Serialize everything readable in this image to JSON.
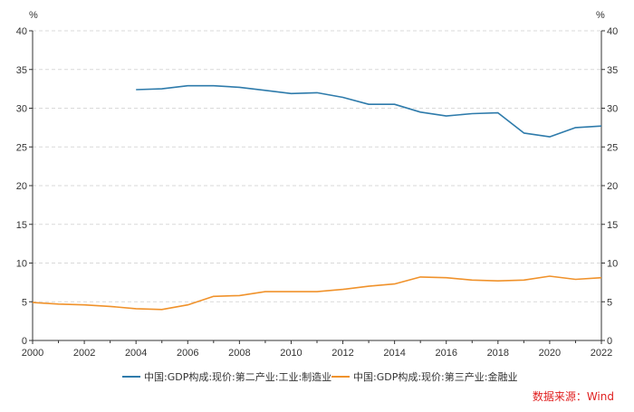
{
  "chart_data": {
    "type": "line",
    "x": [
      2000,
      2001,
      2002,
      2003,
      2004,
      2005,
      2006,
      2007,
      2008,
      2009,
      2010,
      2011,
      2012,
      2013,
      2014,
      2015,
      2016,
      2017,
      2018,
      2019,
      2020,
      2021,
      2022
    ],
    "x_tick_labels": [
      "2000",
      "2002",
      "2004",
      "2006",
      "2008",
      "2010",
      "2012",
      "2014",
      "2016",
      "2018",
      "2020",
      "2022"
    ],
    "xlim": [
      2000,
      2022
    ],
    "ylim": [
      0,
      40
    ],
    "y_tick_labels": [
      "0",
      "5",
      "10",
      "15",
      "20",
      "25",
      "30",
      "35",
      "40"
    ],
    "y_unit_left": "%",
    "y_unit_right": "%",
    "grid": "horizontal-dashed",
    "legend_position": "bottom",
    "series": [
      {
        "name": "中国:GDP构成:现价:第二产业:工业:制造业",
        "color": "#2e7bab",
        "values": [
          null,
          null,
          null,
          null,
          32.4,
          32.5,
          32.9,
          32.9,
          32.7,
          32.3,
          31.9,
          32.0,
          31.4,
          30.5,
          30.5,
          29.5,
          29.0,
          29.3,
          29.4,
          26.8,
          26.3,
          27.5,
          27.7
        ]
      },
      {
        "name": "中国:GDP构成:现价:第三产业:金融业",
        "color": "#f0922b",
        "values": [
          4.9,
          4.7,
          4.6,
          4.4,
          4.1,
          4.0,
          4.6,
          5.7,
          5.8,
          6.3,
          6.3,
          6.3,
          6.6,
          7.0,
          7.3,
          8.2,
          8.1,
          7.8,
          7.7,
          7.8,
          8.3,
          7.9,
          8.1
        ]
      }
    ],
    "source": "数据来源：Wind"
  }
}
